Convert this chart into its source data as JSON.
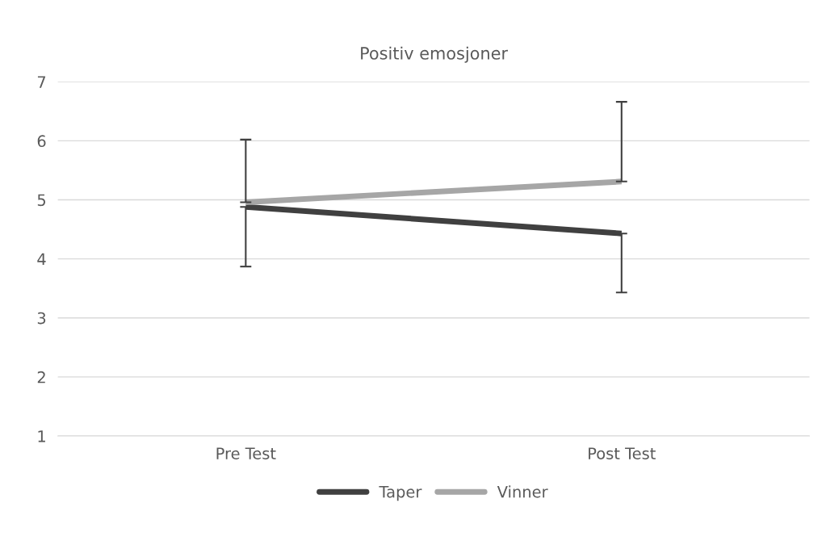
{
  "chart_data": {
    "type": "line",
    "title": "Positiv emosjoner",
    "categories": [
      "Pre Test",
      "Post Test"
    ],
    "series": [
      {
        "name": "Taper",
        "color": "#404040",
        "values": [
          4.88,
          4.43
        ],
        "errors": [
          [
            3.87,
            4.88
          ],
          [
            3.43,
            4.43
          ]
        ]
      },
      {
        "name": "Vinner",
        "color": "#a6a6a6",
        "values": [
          4.96,
          5.31
        ],
        "errors": [
          [
            4.96,
            6.02
          ],
          [
            5.31,
            6.66
          ]
        ]
      }
    ],
    "ylim": [
      1,
      7
    ],
    "yticks": [
      1,
      2,
      3,
      4,
      5,
      6,
      7
    ],
    "grid": "y",
    "legend": "bottom",
    "marker": "none",
    "line_style": "solid"
  }
}
